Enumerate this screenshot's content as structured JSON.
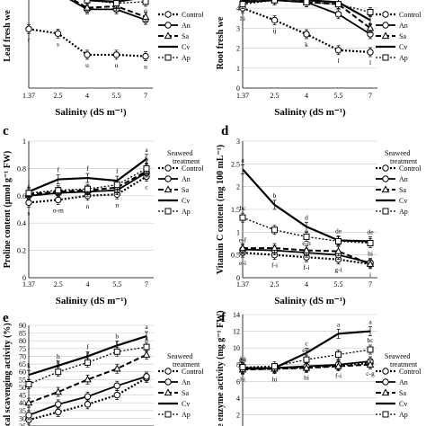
{
  "figure": {
    "common_x": [
      1.37,
      2.5,
      4,
      5.5,
      7
    ],
    "common_x_ticks": [
      "1.37",
      "2.5",
      "4",
      "5.5",
      "7"
    ],
    "legend_title": "Seaweed treatment",
    "legend_entries": [
      "Control",
      "An",
      "Sa",
      "Cv",
      "Ap"
    ]
  },
  "chart_data": [
    {
      "panel": "a",
      "type": "line",
      "title": "",
      "xlabel": "Salinity (dS m⁻¹)",
      "ylabel": "Leaf fresh we",
      "x": [
        1.37,
        2.5,
        4,
        5.5,
        7
      ],
      "ylim": [
        0,
        70
      ],
      "series": [
        {
          "name": "Control",
          "values": [
            39,
            36,
            22,
            22,
            21
          ],
          "letters": [
            "r",
            "s",
            "u",
            "u",
            "u"
          ]
        },
        {
          "name": "An",
          "values": [
            68,
            63,
            52,
            52,
            45
          ],
          "letters": [
            "i",
            "k",
            "o",
            "p",
            "q"
          ]
        },
        {
          "name": "Sa",
          "values": [
            69,
            64,
            53,
            54,
            47
          ],
          "letters": [
            "",
            "",
            "",
            "",
            ""
          ]
        },
        {
          "name": "Cv",
          "values": [
            70,
            67,
            58,
            57,
            60
          ],
          "letters": [
            "",
            "",
            "",
            "",
            ""
          ]
        },
        {
          "name": "Ap",
          "values": [
            69,
            63,
            58,
            56,
            57
          ],
          "letters": [
            "",
            "",
            "",
            "",
            ""
          ]
        }
      ]
    },
    {
      "panel": "b",
      "type": "line",
      "title": "",
      "xlabel": "Salinity (dS m⁻¹)",
      "ylabel": "Root fresh we",
      "x": [
        1.37,
        2.5,
        4,
        5.5,
        7
      ],
      "ylim": [
        0,
        4.5
      ],
      "y_ticks": [
        0,
        1,
        2,
        3,
        4
      ],
      "series": [
        {
          "name": "Control",
          "values": [
            4.0,
            3.4,
            2.7,
            1.9,
            1.8
          ],
          "letters": [
            "hi",
            "ij",
            "k",
            "l",
            "l"
          ]
        },
        {
          "name": "An",
          "values": [
            4.3,
            4.4,
            4.3,
            3.7,
            2.7
          ],
          "letters": [
            "",
            "",
            "",
            "",
            "k"
          ]
        },
        {
          "name": "Sa",
          "values": [
            4.3,
            4.4,
            4.3,
            4.2,
            3.0
          ],
          "letters": [
            "",
            "",
            "",
            "",
            ""
          ]
        },
        {
          "name": "Cv",
          "values": [
            4.4,
            4.5,
            4.4,
            4.3,
            3.4
          ],
          "letters": [
            "",
            "",
            "",
            "",
            ""
          ]
        },
        {
          "name": "Ap",
          "values": [
            4.2,
            4.4,
            4.3,
            4.2,
            3.8
          ],
          "letters": [
            "",
            "",
            "",
            "",
            ""
          ]
        }
      ]
    },
    {
      "panel": "c",
      "type": "line",
      "title": "",
      "xlabel": "Salinity (dS m⁻¹)",
      "ylabel": "Proline content (μmol g⁻¹ FW)",
      "x": [
        1.37,
        2.5,
        4,
        5.5,
        7
      ],
      "ylim": [
        0,
        1
      ],
      "y_ticks": [
        0,
        0.2,
        0.4,
        0.6,
        0.8,
        1
      ],
      "series": [
        {
          "name": "Control",
          "values": [
            0.55,
            0.57,
            0.6,
            0.61,
            0.74
          ],
          "letters": [
            "s",
            "o-m",
            "n",
            "n",
            "c"
          ]
        },
        {
          "name": "An",
          "values": [
            0.6,
            0.62,
            0.63,
            0.64,
            0.77
          ],
          "letters": [
            "r",
            "",
            "",
            "l",
            "e"
          ]
        },
        {
          "name": "Sa",
          "values": [
            0.61,
            0.63,
            0.64,
            0.66,
            0.78
          ],
          "letters": [
            "",
            "",
            "",
            "",
            ""
          ]
        },
        {
          "name": "Cv",
          "values": [
            0.63,
            0.72,
            0.73,
            0.71,
            0.87
          ],
          "letters": [
            "j",
            "f",
            "f",
            "f",
            "a"
          ]
        },
        {
          "name": "Ap",
          "values": [
            0.62,
            0.64,
            0.65,
            0.68,
            0.8
          ],
          "letters": [
            "",
            "",
            "",
            "",
            "b"
          ]
        }
      ]
    },
    {
      "panel": "d",
      "type": "line",
      "title": "",
      "xlabel": "Salinity (dS m⁻¹)",
      "ylabel": "Vitamin C content (mg 100 mL⁻¹)",
      "x": [
        1.37,
        2.5,
        4,
        5.5,
        7
      ],
      "ylim": [
        0,
        3
      ],
      "y_ticks": [
        0,
        0.5,
        1,
        1.5,
        2,
        2.5,
        3
      ],
      "series": [
        {
          "name": "Control",
          "values": [
            0.55,
            0.5,
            0.45,
            0.4,
            0.3
          ],
          "letters": [
            "e-i",
            "f-i",
            "f-i",
            "g-i",
            "i"
          ]
        },
        {
          "name": "An",
          "values": [
            0.62,
            0.6,
            0.55,
            0.5,
            0.33
          ],
          "letters": [
            "e-f",
            "",
            "e-h",
            "",
            "hi"
          ]
        },
        {
          "name": "Sa",
          "values": [
            0.65,
            0.65,
            0.6,
            0.58,
            0.3
          ],
          "letters": [
            "",
            "",
            "",
            "",
            ""
          ]
        },
        {
          "name": "Cv",
          "values": [
            2.38,
            1.6,
            1.12,
            0.82,
            0.8
          ],
          "letters": [
            "a",
            "b",
            "d",
            "de",
            "de"
          ]
        },
        {
          "name": "Ap",
          "values": [
            1.32,
            1.05,
            0.9,
            0.8,
            0.76
          ],
          "letters": [
            "bc",
            "",
            "",
            "",
            ""
          ]
        }
      ]
    },
    {
      "panel": "e",
      "type": "line",
      "title": "",
      "xlabel": "",
      "ylabel": "ical scavenging activity (%)",
      "x": [
        1.37,
        2.5,
        4,
        5.5,
        7
      ],
      "ylim": [
        25,
        90
      ],
      "y_ticks": [
        25,
        30,
        35,
        40,
        45,
        50,
        55,
        60,
        65,
        70,
        75,
        80,
        85,
        90
      ],
      "series": [
        {
          "name": "Control",
          "values": [
            29,
            34,
            39,
            45,
            56
          ],
          "letters": [
            "",
            "",
            "",
            "",
            ""
          ]
        },
        {
          "name": "An",
          "values": [
            32,
            39,
            44,
            51,
            57
          ],
          "letters": [
            "",
            "",
            "",
            "",
            ""
          ]
        },
        {
          "name": "Sa",
          "values": [
            40,
            47,
            55,
            62,
            71
          ],
          "letters": [
            "",
            "",
            "",
            "",
            ""
          ]
        },
        {
          "name": "Cv",
          "values": [
            58,
            64,
            70,
            77,
            83
          ],
          "letters": [
            "k",
            "h",
            "f",
            "b",
            "a"
          ]
        },
        {
          "name": "Ap",
          "values": [
            52,
            60,
            66,
            73,
            76
          ],
          "letters": [
            "l",
            "h",
            "g",
            "c",
            "a"
          ]
        }
      ]
    },
    {
      "panel": "f",
      "type": "line",
      "title": "",
      "xlabel": "",
      "ylabel": "ase enzyme activity (mg g⁻¹ FW)",
      "x": [
        1.37,
        2.5,
        4,
        5.5,
        7
      ],
      "ylim": [
        0,
        14
      ],
      "y_ticks": [
        0,
        2,
        4,
        6,
        8,
        10,
        12,
        14
      ],
      "series": [
        {
          "name": "Control",
          "values": [
            7.5,
            7.5,
            7.7,
            7.9,
            8.2
          ],
          "letters": [
            "hi",
            "hi",
            "hi",
            "f-i",
            "c-g"
          ]
        },
        {
          "name": "An",
          "values": [
            7.6,
            7.6,
            7.8,
            8.0,
            8.4
          ],
          "letters": [
            "hi",
            "",
            "",
            "",
            ""
          ]
        },
        {
          "name": "Sa",
          "values": [
            7.4,
            7.5,
            7.6,
            7.8,
            8.0
          ],
          "letters": [
            "hi",
            "",
            "",
            "",
            ""
          ]
        },
        {
          "name": "Cv",
          "values": [
            7.5,
            7.6,
            9.4,
            11.7,
            12.0
          ],
          "letters": [
            "g-i",
            "",
            "c",
            "a",
            "a"
          ]
        },
        {
          "name": "Ap",
          "values": [
            7.7,
            7.8,
            8.6,
            9.2,
            9.8
          ],
          "letters": [
            "",
            "",
            "e-h",
            "",
            "bc"
          ]
        }
      ]
    }
  ]
}
